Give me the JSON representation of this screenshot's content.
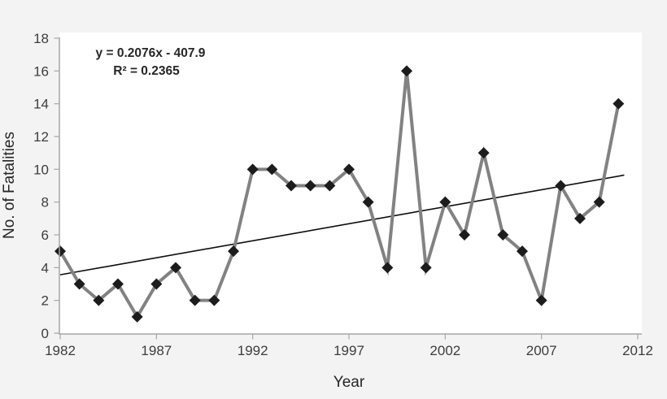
{
  "chart_data": {
    "type": "line",
    "title": "",
    "xlabel": "Year",
    "ylabel": "No. of Fatalities",
    "x": [
      1982,
      1983,
      1984,
      1985,
      1986,
      1987,
      1988,
      1989,
      1990,
      1991,
      1992,
      1993,
      1994,
      1995,
      1996,
      1997,
      1998,
      1999,
      2000,
      2001,
      2002,
      2003,
      2004,
      2005,
      2006,
      2007,
      2008,
      2009,
      2010,
      2011
    ],
    "values": [
      5,
      3,
      2,
      3,
      1,
      3,
      4,
      2,
      2,
      5,
      10,
      10,
      9,
      9,
      9,
      10,
      8,
      4,
      16,
      4,
      8,
      6,
      11,
      6,
      5,
      2,
      9,
      7,
      8,
      14
    ],
    "xlim": [
      1982,
      2012
    ],
    "ylim": [
      0,
      18
    ],
    "x_ticks": [
      "1982",
      "1987",
      "1992",
      "1997",
      "2002",
      "2007",
      "2012"
    ],
    "y_ticks": [
      "0",
      "2",
      "4",
      "6",
      "8",
      "10",
      "12",
      "14",
      "16",
      "18"
    ],
    "grid": false,
    "legend": "none",
    "marker": "diamond",
    "trendline": {
      "type": "linear",
      "slope": 0.2076,
      "intercept": -407.9,
      "x_start": 1982,
      "x_end": 2011.3,
      "equation_label": "y = 0.2076x - 407.9",
      "r_squared_label": "R² = 0.2365"
    }
  },
  "colors": {
    "canvas_bg": "#f3f3f3",
    "plot_bg": "#ffffff",
    "series_line": "#828282",
    "marker": "#1c1c1c",
    "trend_line": "#0d0d0d",
    "axis": "#a6a6a6",
    "tick_text": "#3d3d3d",
    "label_text": "#262626"
  }
}
